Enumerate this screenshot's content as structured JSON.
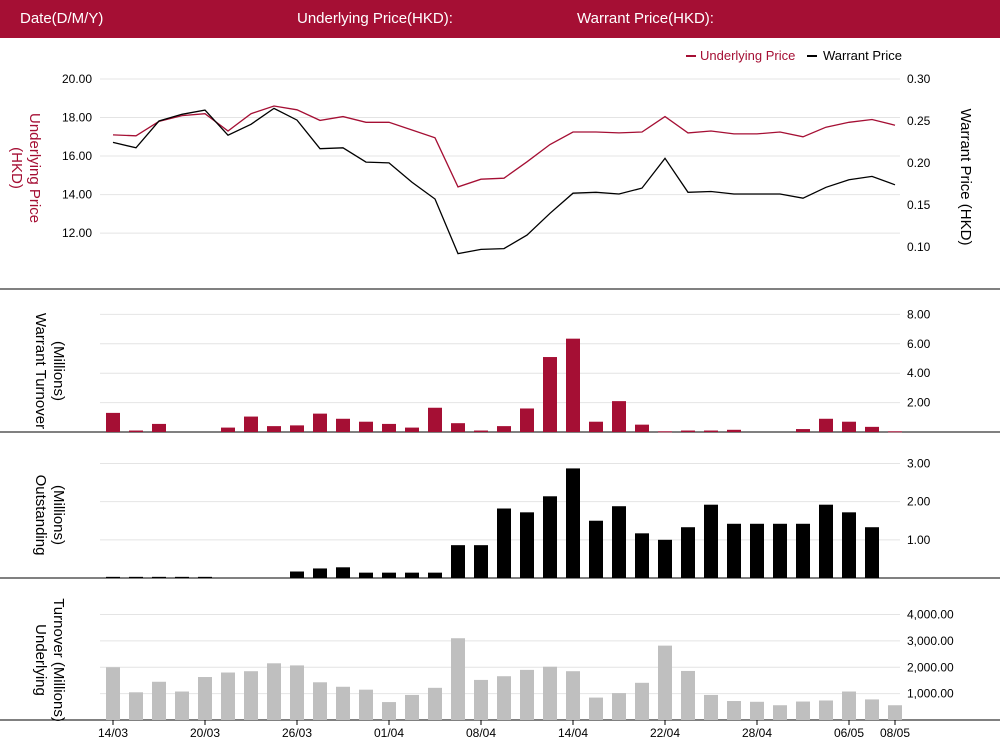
{
  "header": {
    "date_label": "Date(D/M/Y)",
    "underlying_label": "Underlying Price(HKD):",
    "warrant_label": "Warrant Price(HKD):"
  },
  "colors": {
    "header_bg": "#a50f34",
    "underlying": "#a50f34",
    "warrant": "#000000",
    "underlying_turnover": "#bfbfbf"
  },
  "legend": {
    "underlying": "Underlying Price",
    "warrant": "Warrant Price"
  },
  "chart_data": {
    "type": "line",
    "x_tick_labels": [
      "14/03",
      "20/03",
      "26/03",
      "01/04",
      "08/04",
      "14/04",
      "22/04",
      "28/04",
      "06/05",
      "08/05"
    ],
    "x_tick_index": [
      0,
      4,
      8,
      12,
      16,
      20,
      24,
      28,
      32,
      34
    ],
    "price_panel": {
      "left_axis_label": "Underlying Price (HKD)",
      "right_axis_label": "Warrant  Price (HKD)",
      "left_ticks": [
        "20.00",
        "18.00",
        "16.00",
        "14.00",
        "12.00"
      ],
      "left_tick_values": [
        20,
        18,
        16,
        14,
        12
      ],
      "left_range": [
        10.5,
        20.0
      ],
      "right_ticks": [
        "0.30",
        "0.25",
        "0.20",
        "0.15",
        "0.10"
      ],
      "right_tick_values": [
        0.3,
        0.25,
        0.2,
        0.15,
        0.1
      ],
      "right_range": [
        0.082,
        0.3
      ],
      "underlying_series": [
        17.1,
        17.05,
        17.8,
        18.1,
        18.2,
        17.3,
        18.2,
        18.6,
        18.4,
        17.85,
        18.05,
        17.75,
        17.75,
        17.35,
        16.95,
        14.4,
        14.8,
        14.85,
        15.7,
        16.6,
        17.25,
        17.25,
        17.2,
        17.25,
        18.05,
        17.2,
        17.3,
        17.15,
        17.15,
        17.25,
        17.0,
        17.5,
        17.75,
        17.9,
        17.6
      ],
      "warrant_series": [
        0.2245,
        0.218,
        0.25,
        0.258,
        0.263,
        0.233,
        0.246,
        0.265,
        0.251,
        0.217,
        0.218,
        0.201,
        0.2,
        0.177,
        0.157,
        0.092,
        0.097,
        0.098,
        0.114,
        0.14,
        0.164,
        0.165,
        0.163,
        0.17,
        0.2055,
        0.165,
        0.166,
        0.163,
        0.163,
        0.163,
        0.158,
        0.171,
        0.18,
        0.184,
        0.174
      ]
    },
    "warrant_turnover_panel": {
      "axis_label_line1": "Warrant  Turnover",
      "axis_label_line2": "(Millions)",
      "ticks": [
        "8.00",
        "6.00",
        "4.00",
        "2.00"
      ],
      "tick_values": [
        8,
        6,
        4,
        2
      ],
      "range": [
        0,
        8.3
      ],
      "values": [
        1.3,
        0.1,
        0.55,
        0,
        0,
        0.3,
        1.05,
        0.4,
        0.45,
        1.25,
        0.9,
        0.7,
        0.55,
        0.3,
        1.65,
        0.6,
        0.1,
        0.4,
        1.6,
        5.1,
        6.35,
        0.7,
        2.1,
        0.5,
        0.05,
        0.1,
        0.1,
        0.15,
        0,
        0,
        0.2,
        0.9,
        0.7,
        0.35,
        0.05
      ]
    },
    "outstanding_panel": {
      "axis_label_line1": "Outstanding",
      "axis_label_line2": "(Millions)",
      "ticks": [
        "3.00",
        "2.00",
        "1.00"
      ],
      "tick_values": [
        3,
        2,
        1
      ],
      "range": [
        0,
        3.3
      ],
      "values": [
        0.03,
        0.03,
        0.03,
        0.03,
        0.03,
        0,
        0,
        0,
        0.17,
        0.25,
        0.28,
        0.14,
        0.14,
        0.14,
        0.14,
        0.86,
        0.86,
        1.82,
        1.72,
        2.14,
        2.87,
        1.5,
        1.88,
        1.17,
        1.0,
        1.33,
        1.92,
        1.42,
        1.42,
        1.42,
        1.42,
        1.92,
        1.72,
        1.33,
        null
      ]
    },
    "underlying_turnover_panel": {
      "axis_label_line1": "Underlying",
      "axis_label_line2": "Turnover (Millions)",
      "ticks": [
        "4,000.00",
        "3,000.00",
        "2,000.00",
        "1,000.00"
      ],
      "tick_values": [
        4000,
        3000,
        2000,
        1000
      ],
      "range": [
        0,
        4550
      ],
      "values": [
        2000,
        1050,
        1450,
        1080,
        1630,
        1800,
        1850,
        2150,
        2070,
        1430,
        1260,
        1150,
        680,
        950,
        1220,
        3100,
        1520,
        1660,
        1900,
        2020,
        1850,
        850,
        1020,
        1410,
        2820,
        1860,
        950,
        720,
        690,
        560,
        700,
        740,
        1080,
        780,
        560
      ]
    }
  }
}
